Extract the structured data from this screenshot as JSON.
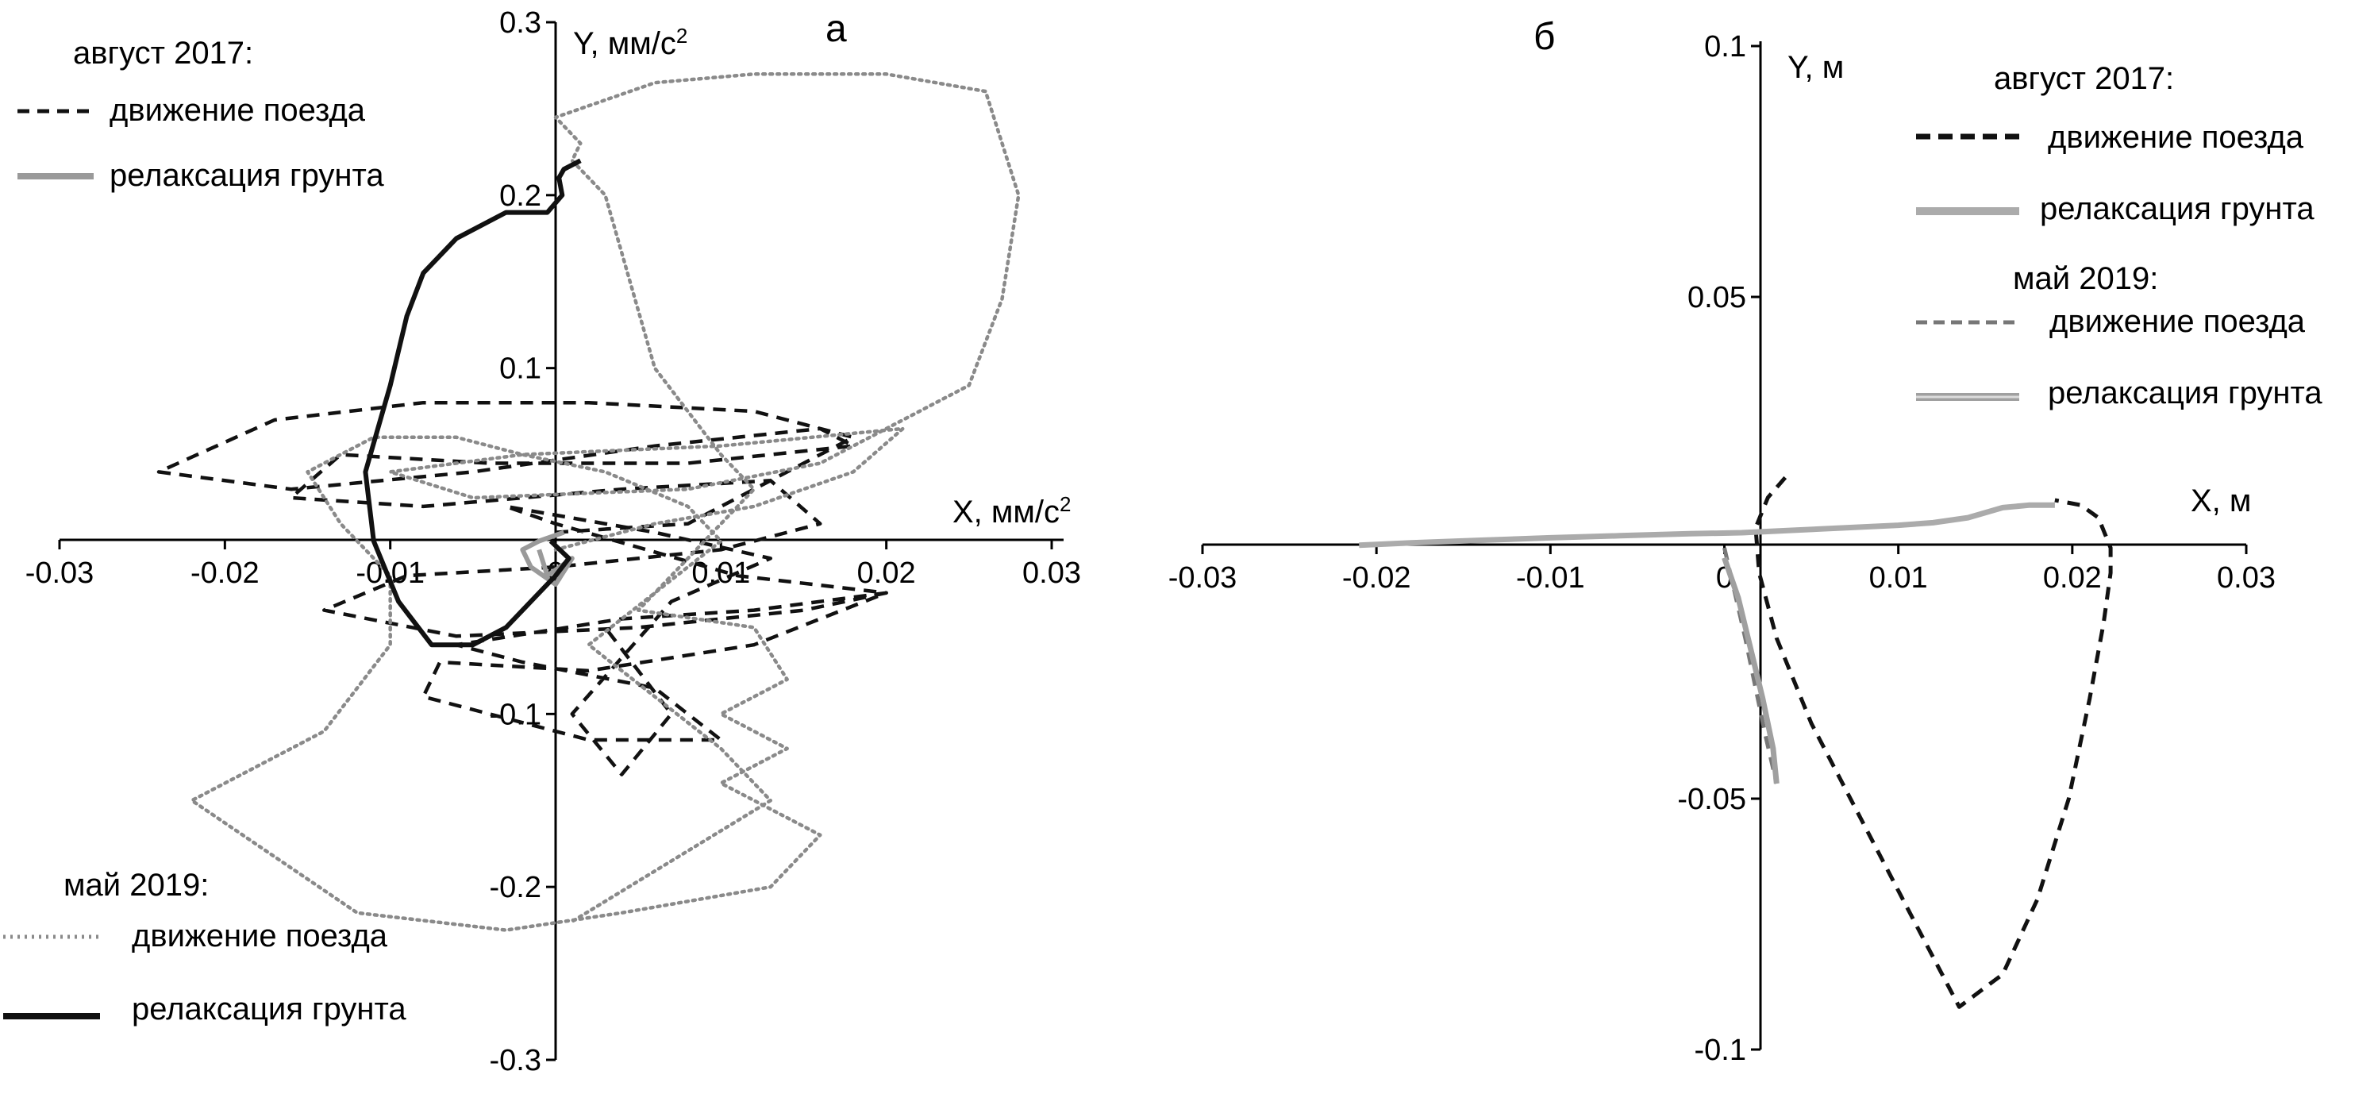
{
  "chart_data": [
    {
      "panel_label": "а",
      "type": "line",
      "xlabel": "X, мм/с",
      "xlabel_sup": "2",
      "ylabel": "Y, мм/с",
      "ylabel_sup": "2",
      "xlim": [
        -0.03,
        0.03
      ],
      "ylim": [
        -0.3,
        0.3
      ],
      "x_ticks": [
        "-0.03",
        "-0.02",
        "-0.01",
        "0",
        "0.01",
        "0.02",
        "0.03"
      ],
      "y_ticks": [
        "0.3",
        "0.2",
        "0.1",
        "-0.1",
        "-0.2",
        "-0.3"
      ],
      "legend_groups": [
        {
          "heading": "август 2017:",
          "position": "top-left",
          "entries": [
            {
              "label": "движение поезда",
              "style": "black-dashed"
            },
            {
              "label": "релаксация грунта",
              "style": "gray-solid"
            }
          ]
        },
        {
          "heading": "май 2019:",
          "position": "bottom-left",
          "entries": [
            {
              "label": "движение поезда",
              "style": "gray-dotted"
            },
            {
              "label": "релаксация грунта",
              "style": "black-solid"
            }
          ]
        }
      ],
      "series": [
        {
          "legend_ref": "август 2017: движение поезда",
          "color": "#111111",
          "dash": "dashed",
          "x": [
            0,
            0.008,
            0.014,
            0.018,
            0.012,
            0.002,
            -0.008,
            -0.017,
            -0.024,
            -0.016,
            -0.005,
            0.006,
            0.016,
            0.018,
            0.008,
            -0.004,
            -0.013,
            -0.016,
            -0.008,
            0.004,
            0.013,
            0.016,
            0.01,
            0,
            -0.009,
            -0.014,
            -0.006,
            0.005,
            0.015,
            0.02,
            0.012,
            0.002,
            -0.007,
            -0.008,
            0.002,
            0.01,
            0.006,
            -0.002,
            -0.006,
            0.004,
            0.012,
            0.02,
            0.011,
            0,
            -0.003,
            0.006,
            0.013,
            0.007,
            0.001,
            0.004,
            0.007,
            0.003
          ],
          "y": [
            0.005,
            0.01,
            0.04,
            0.06,
            0.075,
            0.08,
            0.08,
            0.07,
            0.04,
            0.03,
            0.04,
            0.055,
            0.065,
            0.055,
            0.045,
            0.045,
            0.05,
            0.025,
            0.02,
            0.03,
            0.035,
            0.01,
            -0.005,
            -0.015,
            -0.02,
            -0.04,
            -0.055,
            -0.05,
            -0.04,
            -0.03,
            -0.06,
            -0.075,
            -0.07,
            -0.09,
            -0.115,
            -0.115,
            -0.085,
            -0.07,
            -0.06,
            -0.045,
            -0.04,
            -0.03,
            -0.02,
            0.01,
            0.02,
            0.005,
            -0.01,
            -0.035,
            -0.1,
            -0.135,
            -0.1,
            -0.05
          ]
        },
        {
          "legend_ref": "май 2019: движение поезда",
          "color": "#8a8a8a",
          "dash": "dotted",
          "x": [
            0,
            0.006,
            0.012,
            0.018,
            0.021,
            0.01,
            -0.002,
            -0.01,
            -0.005,
            0.008,
            0.016,
            0.019,
            0.025,
            0.027,
            0.028,
            0.026,
            0.02,
            0.012,
            0.006,
            0.003,
            0,
            0.0015,
            0.001,
            0.003,
            0.006,
            0.01,
            0.012,
            0.008,
            0.005,
            0.012,
            0.014,
            0.01,
            0.014,
            0.01,
            0.016,
            0.013,
            0.004,
            -0.003,
            -0.012,
            -0.022,
            -0.014,
            -0.01,
            -0.01,
            -0.013,
            -0.015,
            -0.011,
            -0.006,
            -0.002,
            0.003,
            0.008,
            0.01,
            0.006,
            0.002,
            0.006,
            0.01,
            0.013,
            0.007,
            0.001
          ],
          "y": [
            -0.005,
            0.01,
            0.02,
            0.04,
            0.065,
            0.055,
            0.05,
            0.04,
            0.025,
            0.03,
            0.045,
            0.06,
            0.09,
            0.14,
            0.2,
            0.26,
            0.27,
            0.27,
            0.265,
            0.255,
            0.245,
            0.23,
            0.22,
            0.2,
            0.1,
            0.05,
            0.03,
            -0.01,
            -0.04,
            -0.05,
            -0.08,
            -0.1,
            -0.12,
            -0.14,
            -0.17,
            -0.2,
            -0.215,
            -0.225,
            -0.215,
            -0.15,
            -0.11,
            -0.06,
            -0.02,
            0.01,
            0.04,
            0.06,
            0.06,
            0.05,
            0.04,
            0.02,
            0,
            -0.03,
            -0.06,
            -0.09,
            -0.12,
            -0.15,
            -0.185,
            -0.22
          ]
        },
        {
          "legend_ref": "август 2017: релаксация грунта",
          "color": "#9a9a9a",
          "dash": "solid",
          "x": [
            0.0005,
            -0.001,
            -0.002,
            -0.0015,
            0,
            0.001,
            -0.0005,
            -0.001
          ],
          "y": [
            0.005,
            0,
            -0.005,
            -0.015,
            -0.025,
            -0.01,
            -0.02,
            -0.005
          ]
        },
        {
          "legend_ref": "май 2019: релаксация грунта",
          "color": "#111111",
          "dash": "solid",
          "x": [
            0.0015,
            0.0005,
            0.0002,
            0.0004,
            -0.0005,
            -0.003,
            -0.006,
            -0.008,
            -0.009,
            -0.01,
            -0.0115,
            -0.011,
            -0.0095,
            -0.0075,
            -0.005,
            -0.003,
            -0.0015,
            0,
            0.0008,
            -0.0003
          ],
          "y": [
            0.22,
            0.215,
            0.21,
            0.2,
            0.19,
            0.19,
            0.175,
            0.155,
            0.13,
            0.09,
            0.04,
            0.0,
            -0.035,
            -0.06,
            -0.06,
            -0.05,
            -0.035,
            -0.02,
            -0.01,
            0.0
          ]
        }
      ]
    },
    {
      "panel_label": "б",
      "type": "line",
      "xlabel": "X, м",
      "ylabel": "Y, м",
      "xlim": [
        -0.03,
        0.03
      ],
      "ylim": [
        -0.1,
        0.1
      ],
      "x_ticks": [
        "-0.03",
        "-0.02",
        "-0.01",
        "0",
        "0.01",
        "0.02",
        "0.03"
      ],
      "y_ticks": [
        "0.1",
        "0.05",
        "-0.05",
        "-0.1"
      ],
      "legend_groups": [
        {
          "heading": "август 2017:",
          "position": "top-right",
          "entries": [
            {
              "label": "движение поезда",
              "style": "black-dashed"
            },
            {
              "label": "релаксация грунта",
              "style": "gray-solid"
            }
          ]
        },
        {
          "heading": "май 2019:",
          "position": "right",
          "entries": [
            {
              "label": "движение поезда",
              "style": "gray-dashed"
            },
            {
              "label": "релаксация грунта",
              "style": "gray-double"
            }
          ]
        }
      ],
      "series": [
        {
          "legend_ref": "август 2017: движение поезда",
          "color": "#111111",
          "dash": "dashed",
          "x": [
            0.0035,
            0.0025,
            0.0018,
            0.002,
            0.003,
            0.005,
            0.008,
            0.011,
            0.0135,
            0.016,
            0.018,
            0.0198,
            0.021,
            0.0218,
            0.0222,
            0.0222,
            0.0215,
            0.0205,
            0.019
          ],
          "y": [
            0.014,
            0.01,
            0.004,
            -0.005,
            -0.018,
            -0.035,
            -0.055,
            -0.075,
            -0.0915,
            -0.085,
            -0.07,
            -0.05,
            -0.03,
            -0.015,
            -0.005,
            0.0,
            0.006,
            0.0085,
            0.0095
          ]
        },
        {
          "legend_ref": "август 2017: релаксация грунта",
          "color": "#ababab",
          "dash": "solid",
          "x": [
            0.019,
            0.0175,
            0.016,
            0.014,
            0.012,
            0.01,
            0.007,
            0.004,
            0.001,
            -0.002,
            -0.006,
            -0.01,
            -0.014,
            -0.018,
            -0.021
          ],
          "y": [
            0.0085,
            0.0085,
            0.008,
            0.006,
            0.005,
            0.0045,
            0.004,
            0.0035,
            0.003,
            0.0028,
            0.0024,
            0.002,
            0.0015,
            0.001,
            0.0005
          ]
        },
        {
          "legend_ref": "май 2019: движение поезда",
          "color": "#777777",
          "dash": "dashed",
          "x": [
            0,
            0.0006,
            0.0012,
            0.0018,
            0.0024,
            0.003
          ],
          "y": [
            0,
            -0.009,
            -0.018,
            -0.028,
            -0.038,
            -0.047
          ]
        },
        {
          "legend_ref": "май 2019: релаксация грунта",
          "color": "#a0a0a0",
          "dash": "solid",
          "x": [
            0.003,
            0.0028,
            0.0022,
            0.0015,
            0.0008,
            0.0
          ],
          "y": [
            -0.047,
            -0.04,
            -0.03,
            -0.02,
            -0.01,
            -0.002
          ]
        }
      ]
    }
  ]
}
